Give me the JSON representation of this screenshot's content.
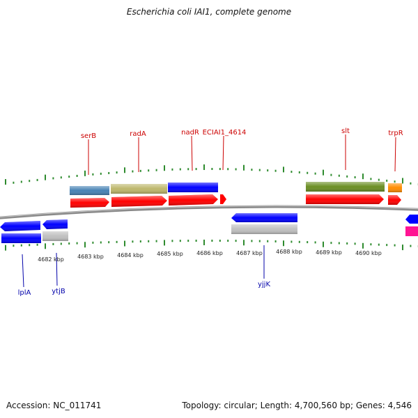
{
  "title": "Escherichia coli IAI1, complete genome",
  "footer": {
    "accession": "Accession: NC_011741",
    "summary": "Topology: circular; Length: 4,700,560 bp; Genes: 4,546"
  },
  "colors": {
    "backbone": "#8a8a8a",
    "tick": "#2e8b2e",
    "label_top": "#cc0000",
    "label_bottom": "#0000aa"
  },
  "scale_labels": [
    "4682 kbp",
    "4683 kbp",
    "4684 kbp",
    "4685 kbp",
    "4686 kbp",
    "4687 kbp",
    "4688 kbp",
    "4689 kbp",
    "4690 kbp"
  ],
  "gene_labels_top": [
    "serB",
    "radA",
    "nadR",
    "ECIAI1_4614",
    "slt",
    "trpR"
  ],
  "gene_labels_bottom": [
    "lplA",
    "ytjB",
    "yjjK"
  ]
}
